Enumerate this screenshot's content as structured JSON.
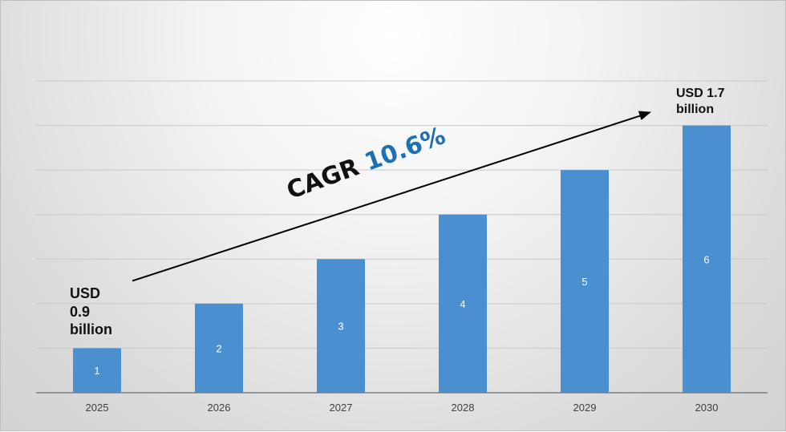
{
  "chart_data": {
    "type": "bar",
    "categories": [
      "2025",
      "2026",
      "2027",
      "2028",
      "2029",
      "2030"
    ],
    "values": [
      1,
      2,
      3,
      4,
      5,
      6
    ],
    "data_labels": [
      "1",
      "2",
      "3",
      "4",
      "5",
      "6"
    ],
    "ylim": [
      0,
      7
    ],
    "grid": true,
    "bar_color": "#4a8fd0",
    "annotations": {
      "start": [
        "USD",
        "0.9",
        "billion"
      ],
      "end": [
        "USD 1.7",
        "billion"
      ],
      "cagr_label": "CAGR",
      "cagr_value": "10.6%"
    }
  }
}
